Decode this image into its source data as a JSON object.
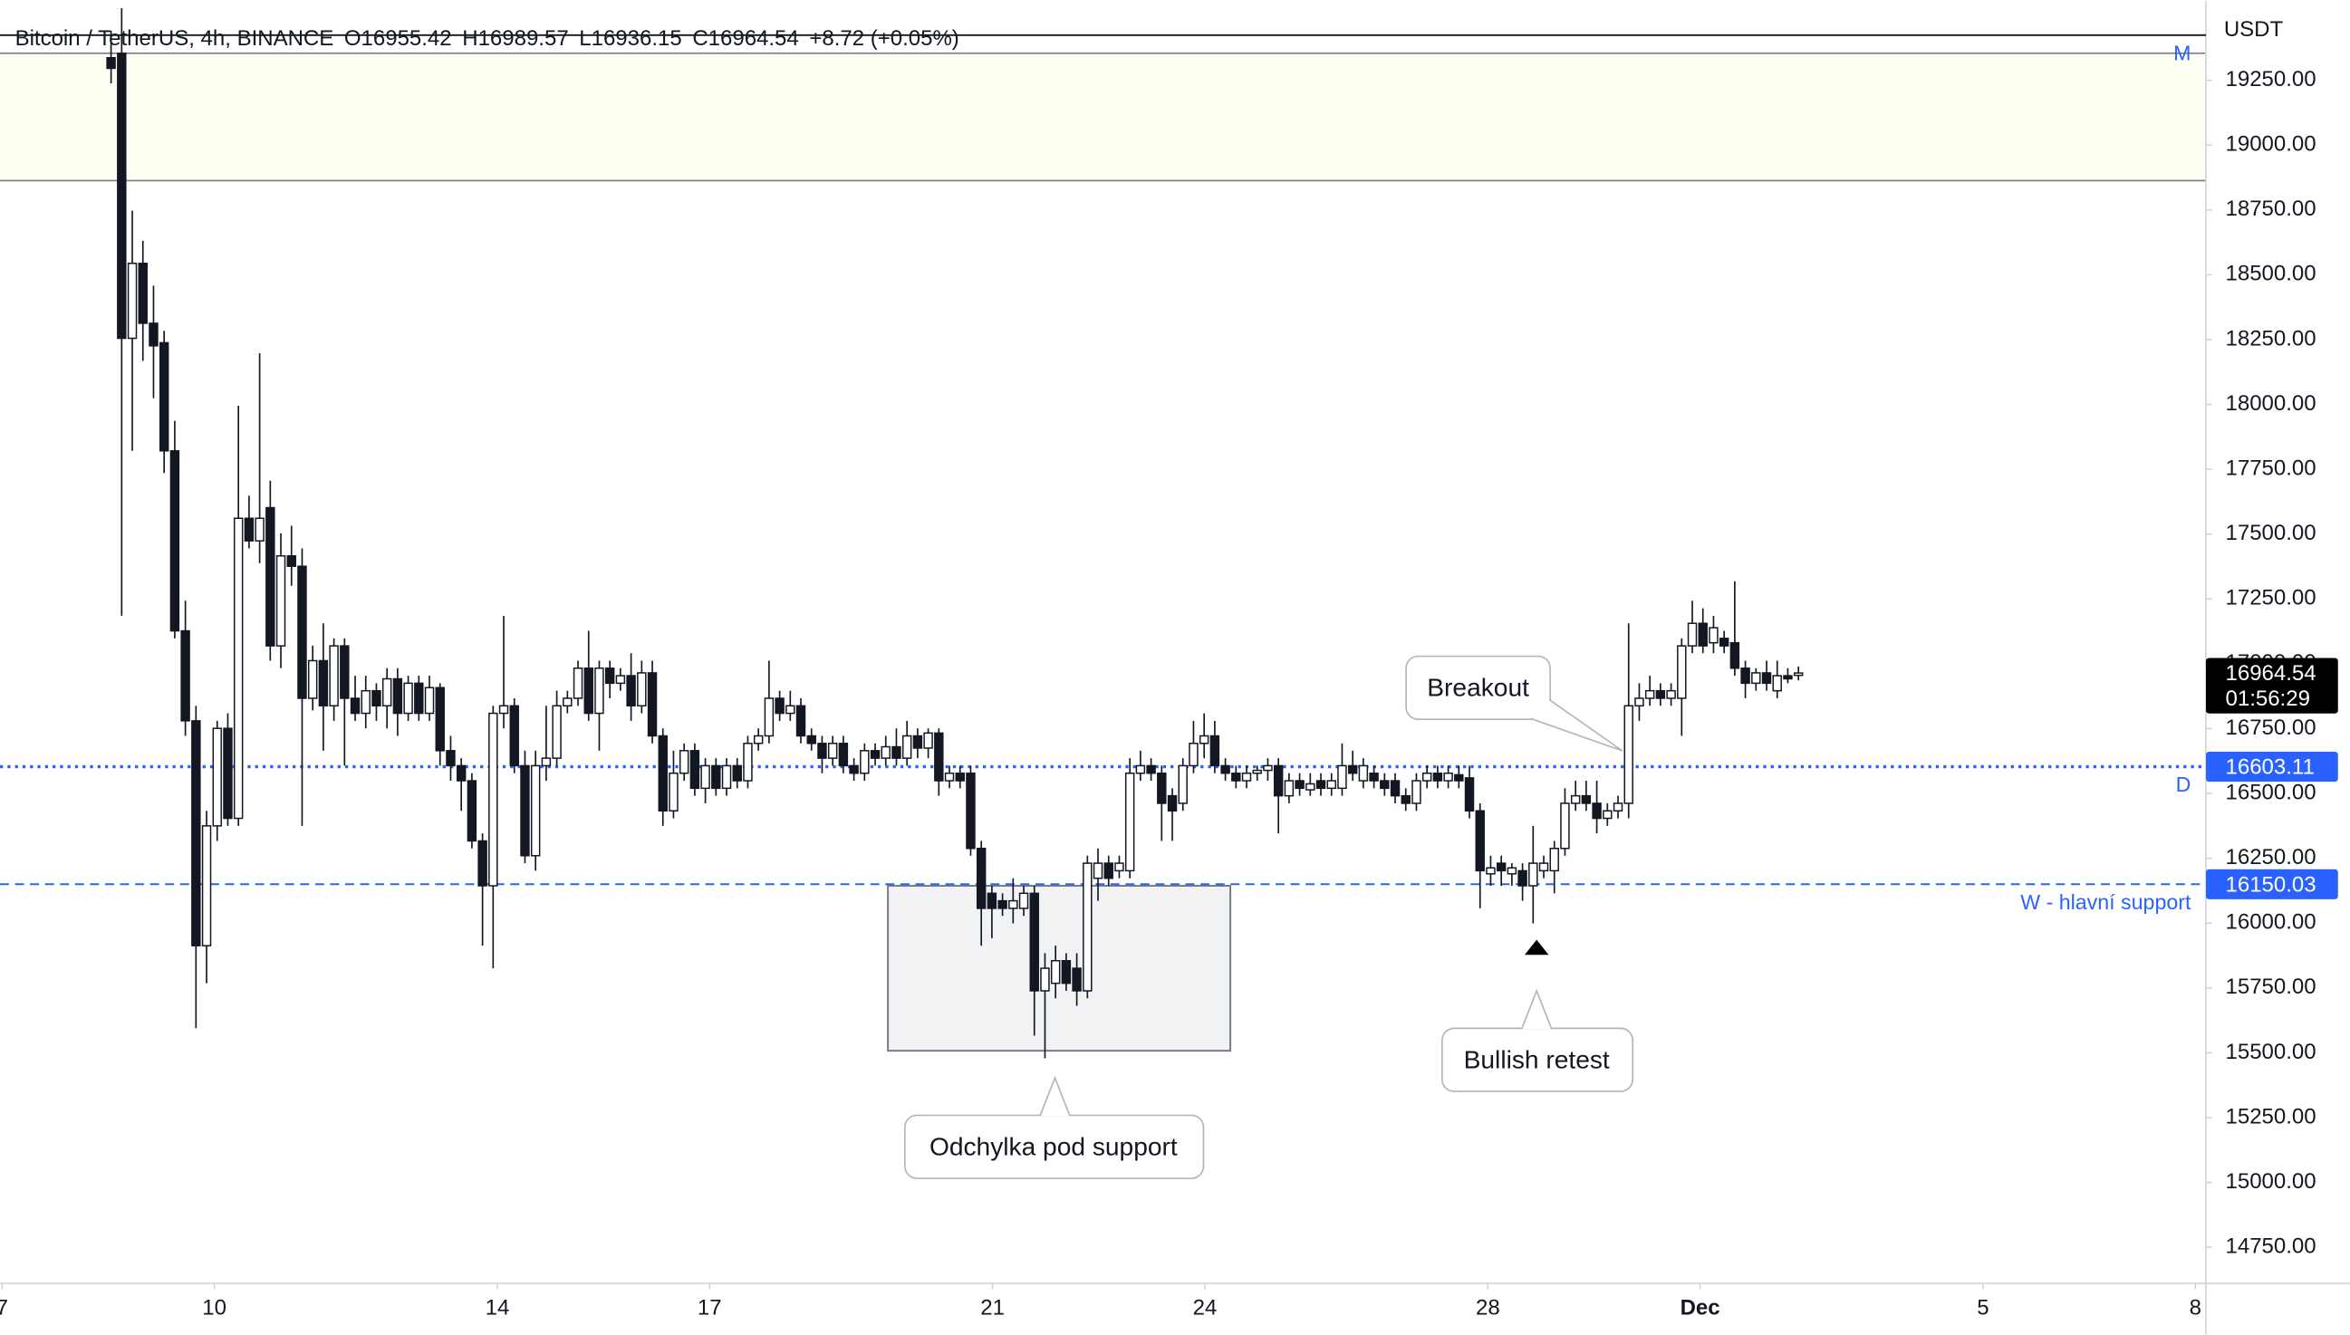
{
  "header": {
    "symbol": "Bitcoin / TetherUS, 4h, BINANCE",
    "open": "O16955.42",
    "high": "H16989.57",
    "low": "L16936.15",
    "close": "C16964.54",
    "change": "+8.72 (+0.05%)"
  },
  "chart_data": {
    "type": "candlestick",
    "currency": "USDT",
    "x": [
      8.54,
      8.69,
      8.84,
      8.99,
      9.14,
      9.29,
      9.44,
      9.59,
      9.74,
      9.89,
      10.04,
      10.19,
      10.34,
      10.49,
      10.64,
      10.79,
      10.94,
      11.09,
      11.24,
      11.39,
      11.54,
      11.69,
      11.84,
      11.99,
      12.14,
      12.29,
      12.44,
      12.59,
      12.74,
      12.89,
      13.04,
      13.19,
      13.34,
      13.49,
      13.64,
      13.79,
      13.94,
      14.09,
      14.24,
      14.39,
      14.54,
      14.69,
      14.84,
      14.99,
      15.14,
      15.29,
      15.44,
      15.59,
      15.74,
      15.89,
      16.04,
      16.19,
      16.34,
      16.49,
      16.64,
      16.79,
      16.94,
      17.09,
      17.24,
      17.39,
      17.54,
      17.69,
      17.84,
      17.99,
      18.14,
      18.29,
      18.44,
      18.59,
      18.74,
      18.89,
      19.04,
      19.19,
      19.34,
      19.49,
      19.64,
      19.79,
      19.94,
      20.09,
      20.24,
      20.39,
      20.54,
      20.69,
      20.84,
      20.99,
      21.14,
      21.29,
      21.44,
      21.59,
      21.74,
      21.89,
      22.04,
      22.19,
      22.34,
      22.49,
      22.64,
      22.79,
      22.94,
      23.09,
      23.24,
      23.39,
      23.54,
      23.69,
      23.84,
      23.99,
      24.14,
      24.29,
      24.44,
      24.59,
      24.74,
      24.89,
      25.04,
      25.19,
      25.34,
      25.49,
      25.64,
      25.79,
      25.94,
      26.09,
      26.24,
      26.39,
      26.54,
      26.69,
      26.84,
      26.99,
      27.14,
      27.29,
      27.44,
      27.59,
      27.74,
      27.89,
      28.04,
      28.19,
      28.34,
      28.49,
      28.64,
      28.79,
      28.94,
      29.09,
      29.24,
      29.39,
      29.54,
      29.69,
      29.84,
      29.99,
      30.14,
      30.29,
      30.44,
      30.59,
      30.74,
      30.89,
      31.04,
      31.19,
      31.34,
      31.49,
      31.64,
      31.79,
      31.94,
      32.09,
      32.24,
      32.39
    ],
    "open": [
      19337,
      19354,
      18255,
      18544,
      18313,
      18238,
      17821,
      17127,
      16780,
      15913,
      16375,
      16751,
      16404,
      17561,
      17474,
      17602,
      17069,
      17416,
      17376,
      16867,
      17012,
      16838,
      17069,
      16867,
      16809,
      16896,
      16838,
      16942,
      16809,
      16925,
      16809,
      16908,
      16665,
      16607,
      16549,
      16317,
      16144,
      16809,
      16838,
      16607,
      16260,
      16607,
      16636,
      16838,
      16867,
      16983,
      16809,
      16983,
      16925,
      16954,
      16838,
      16965,
      16722,
      16433,
      16578,
      16665,
      16520,
      16607,
      16520,
      16607,
      16549,
      16693,
      16722,
      16867,
      16809,
      16838,
      16722,
      16693,
      16636,
      16693,
      16607,
      16578,
      16665,
      16636,
      16680,
      16636,
      16722,
      16675,
      16733,
      16549,
      16578,
      16578,
      16288,
      16115,
      16086,
      16057,
      16057,
      16115,
      15739,
      15768,
      15855,
      15826,
      15739,
      16173,
      16231,
      16202,
      16202,
      16578,
      16607,
      16578,
      16491,
      16462,
      16607,
      16693,
      16722,
      16607,
      16578,
      16549,
      16578,
      16589,
      16607,
      16491,
      16549,
      16514,
      16549,
      16520,
      16520,
      16607,
      16549,
      16578,
      16549,
      16549,
      16491,
      16462,
      16549,
      16578,
      16549,
      16572,
      16560,
      16433,
      16190,
      16231,
      16190,
      16202,
      16144,
      16202,
      16202,
      16288,
      16462,
      16491,
      16462,
      16404,
      16433,
      16462,
      16838,
      16867,
      16896,
      16867,
      16867,
      17069,
      17156,
      17081,
      17098,
      17081,
      16983,
      16925,
      16965,
      16896,
      16954,
      16955.42
    ],
    "high": [
      19441,
      19528,
      18747,
      18631,
      18458,
      18284,
      17937,
      17243,
      16838,
      16433,
      16780,
      16809,
      17995,
      17648,
      18197,
      17706,
      17503,
      17532,
      17445,
      17070,
      17156,
      17098,
      17098,
      16954,
      16954,
      16925,
      16983,
      16983,
      16954,
      16954,
      16954,
      16925,
      16722,
      16636,
      16578,
      16346,
      16838,
      17185,
      16867,
      16665,
      16665,
      16838,
      16896,
      16896,
      17012,
      17127,
      17012,
      17012,
      16983,
      17041,
      17012,
      17012,
      16751,
      16665,
      16693,
      16693,
      16636,
      16636,
      16636,
      16636,
      16722,
      16751,
      17012,
      16896,
      16896,
      16867,
      16751,
      16722,
      16722,
      16722,
      16636,
      16693,
      16693,
      16722,
      16751,
      16780,
      16751,
      16751,
      16751,
      16607,
      16607,
      16607,
      16317,
      16144,
      16115,
      16173,
      16144,
      16144,
      15884,
      15913,
      15884,
      15884,
      16260,
      16288,
      16260,
      16260,
      16636,
      16665,
      16636,
      16607,
      16520,
      16636,
      16780,
      16809,
      16780,
      16636,
      16607,
      16607,
      16607,
      16636,
      16636,
      16578,
      16578,
      16578,
      16578,
      16578,
      16693,
      16665,
      16636,
      16607,
      16578,
      16578,
      16520,
      16578,
      16607,
      16607,
      16607,
      16607,
      16607,
      16462,
      16260,
      16260,
      16231,
      16231,
      16375,
      16260,
      16317,
      16520,
      16549,
      16549,
      16549,
      16462,
      16491,
      17156,
      16925,
      16954,
      16925,
      16925,
      17098,
      17243,
      17214,
      17185,
      17127,
      17318,
      17012,
      16983,
      17012,
      17012,
      16983,
      16989.57
    ],
    "low": [
      19238,
      17185,
      17821,
      18168,
      18024,
      17735,
      17098,
      16722,
      15595,
      15768,
      16317,
      16375,
      16375,
      17445,
      17388,
      17012,
      16983,
      17301,
      16375,
      16820,
      16665,
      16780,
      16607,
      16780,
      16751,
      16780,
      16751,
      16722,
      16780,
      16780,
      16780,
      16607,
      16549,
      16433,
      16288,
      15913,
      15826,
      16751,
      16578,
      16231,
      16202,
      16549,
      16607,
      16809,
      16838,
      16780,
      16665,
      16867,
      16896,
      16780,
      16809,
      16693,
      16375,
      16404,
      16549,
      16491,
      16462,
      16491,
      16491,
      16520,
      16520,
      16665,
      16693,
      16780,
      16780,
      16693,
      16665,
      16578,
      16607,
      16578,
      16549,
      16549,
      16607,
      16607,
      16607,
      16607,
      16636,
      16636,
      16491,
      16520,
      16520,
      16260,
      15913,
      15942,
      16028,
      15999,
      16028,
      15566,
      15479,
      15710,
      15739,
      15681,
      15710,
      16086,
      16144,
      16173,
      16173,
      16549,
      16549,
      16317,
      16317,
      16433,
      16578,
      16636,
      16578,
      16549,
      16520,
      16520,
      16549,
      16549,
      16346,
      16462,
      16491,
      16491,
      16491,
      16491,
      16491,
      16549,
      16520,
      16520,
      16491,
      16462,
      16433,
      16433,
      16520,
      16520,
      16520,
      16520,
      16404,
      16057,
      16144,
      16144,
      16144,
      16086,
      15999,
      16173,
      16115,
      16260,
      16433,
      16433,
      16346,
      16375,
      16404,
      16404,
      16780,
      16838,
      16838,
      16838,
      16722,
      17041,
      17041,
      17041,
      17041,
      16954,
      16867,
      16896,
      16896,
      16867,
      16925,
      16936.15
    ],
    "close": [
      19296,
      18255,
      18544,
      18313,
      18226,
      17821,
      17127,
      16780,
      15913,
      16375,
      16751,
      16404,
      17561,
      17474,
      17561,
      17069,
      17416,
      17376,
      16867,
      17012,
      16838,
      17069,
      16867,
      16809,
      16896,
      16838,
      16942,
      16809,
      16925,
      16809,
      16908,
      16665,
      16607,
      16549,
      16317,
      16144,
      16809,
      16838,
      16607,
      16260,
      16607,
      16636,
      16838,
      16867,
      16983,
      16809,
      16983,
      16925,
      16954,
      16838,
      16965,
      16722,
      16433,
      16578,
      16665,
      16520,
      16607,
      16520,
      16607,
      16549,
      16693,
      16722,
      16867,
      16809,
      16838,
      16722,
      16693,
      16636,
      16693,
      16607,
      16578,
      16665,
      16636,
      16680,
      16636,
      16722,
      16675,
      16733,
      16549,
      16578,
      16549,
      16288,
      16057,
      16057,
      16057,
      16086,
      16115,
      15739,
      15826,
      15855,
      15768,
      15739,
      16231,
      16231,
      16173,
      16231,
      16578,
      16607,
      16578,
      16462,
      16433,
      16607,
      16693,
      16722,
      16607,
      16578,
      16549,
      16578,
      16589,
      16607,
      16491,
      16549,
      16520,
      16537,
      16520,
      16549,
      16607,
      16578,
      16607,
      16549,
      16520,
      16491,
      16462,
      16549,
      16578,
      16549,
      16578,
      16549,
      16433,
      16202,
      16213,
      16202,
      16213,
      16144,
      16231,
      16231,
      16288,
      16462,
      16491,
      16462,
      16404,
      16433,
      16462,
      16838,
      16867,
      16896,
      16867,
      16896,
      17069,
      17156,
      17069,
      17139,
      17069,
      16983,
      16925,
      16965,
      16925,
      16954,
      16942,
      16964.54
    ],
    "up_color": "#ffffff",
    "down_color": "#131722",
    "xlim": [
      6.97,
      38.15
    ],
    "xticks": [
      7,
      10,
      14,
      17,
      21,
      24,
      28,
      {
        "value": 31,
        "label": "Dec"
      },
      {
        "value": 35,
        "label": "5"
      },
      {
        "value": 38,
        "label": "8"
      }
    ],
    "ylim": [
      14611,
      19557
    ],
    "yticks": [
      {
        "value": 14750,
        "label": "14750.00"
      },
      {
        "value": 15000,
        "label": "15000.00"
      },
      {
        "value": 15250,
        "label": "15250.00"
      },
      {
        "value": 15500,
        "label": "15500.00"
      },
      {
        "value": 15750,
        "label": "15750.00"
      },
      {
        "value": 16000,
        "label": "16000.00"
      },
      {
        "value": 16250,
        "label": "16250.00"
      },
      {
        "value": 16500,
        "label": "16500.00"
      },
      {
        "value": 16750,
        "label": "16750.00"
      },
      {
        "value": 17000,
        "label": "17000.00"
      },
      {
        "value": 17250,
        "label": "17250.00"
      },
      {
        "value": 17500,
        "label": "17500.00"
      },
      {
        "value": 17750,
        "label": "17750.00"
      },
      {
        "value": 18000,
        "label": "18000.00"
      },
      {
        "value": 18250,
        "label": "18250.00"
      },
      {
        "value": 18500,
        "label": "18500.00"
      },
      {
        "value": 18750,
        "label": "18750.00"
      },
      {
        "value": 19000,
        "label": "19000.00"
      },
      {
        "value": 19250,
        "label": "19250.00"
      }
    ],
    "zone": {
      "from": 18863,
      "to": 19354,
      "label": "M",
      "color": "#fffef3"
    },
    "levels": [
      {
        "value": 16150.03,
        "label": "W - hlavní support",
        "style": "dashed",
        "color": "#2962ff"
      },
      {
        "value": 16603.11,
        "label": "D",
        "style": "dotted",
        "color": "#2962ff"
      }
    ],
    "last_price": {
      "value": 16964.54,
      "countdown": "01:56:29"
    },
    "box": {
      "x": [
        19.52,
        24.36
      ],
      "y": [
        15508,
        16144
      ]
    },
    "annotations": [
      "Odchylka pod support",
      "Bullish retest",
      "Breakout"
    ]
  }
}
